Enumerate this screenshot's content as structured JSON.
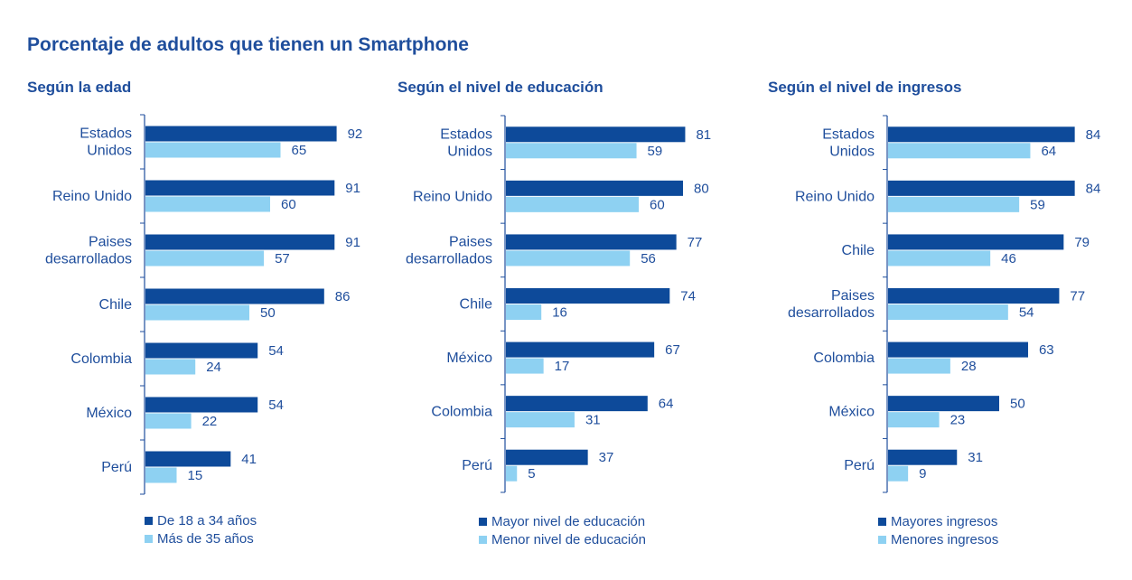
{
  "title": "Porcentaje de adultos que tienen un Smartphone",
  "colors": {
    "primary": "#0d4a9a",
    "secondary": "#8ed1f2",
    "text": "#1f4e9c"
  },
  "chart_data": [
    {
      "type": "bar",
      "orientation": "horizontal",
      "title": "Según la edad",
      "categories": [
        [
          "Estados",
          "Unidos"
        ],
        [
          "Reino Unido"
        ],
        [
          "Paises",
          "desarrollados"
        ],
        [
          "Chile"
        ],
        [
          "Colombia"
        ],
        [
          "México"
        ],
        [
          "Perú"
        ]
      ],
      "series": [
        {
          "name": "De 18 a 34 años",
          "values": [
            92,
            91,
            91,
            86,
            54,
            54,
            41
          ]
        },
        {
          "name": "Más de 35 años",
          "values": [
            65,
            60,
            57,
            50,
            24,
            22,
            15
          ]
        }
      ],
      "xlim": [
        0,
        100
      ],
      "legend": "bottom"
    },
    {
      "type": "bar",
      "orientation": "horizontal",
      "title": "Según el nivel de educación",
      "categories": [
        [
          "Estados",
          "Unidos"
        ],
        [
          "Reino Unido"
        ],
        [
          "Paises",
          "desarrollados"
        ],
        [
          "Chile"
        ],
        [
          "México"
        ],
        [
          "Colombia"
        ],
        [
          "Perú"
        ]
      ],
      "series": [
        {
          "name": "Mayor nivel de educación",
          "values": [
            81,
            80,
            77,
            74,
            67,
            64,
            37
          ]
        },
        {
          "name": "Menor nivel de educación",
          "values": [
            59,
            60,
            56,
            16,
            17,
            31,
            5
          ]
        }
      ],
      "xlim": [
        0,
        100
      ],
      "legend": "bottom"
    },
    {
      "type": "bar",
      "orientation": "horizontal",
      "title": "Según el nivel de ingresos",
      "categories": [
        [
          "Estados",
          "Unidos"
        ],
        [
          "Reino Unido"
        ],
        [
          "Chile"
        ],
        [
          "Paises",
          "desarrollados"
        ],
        [
          "Colombia"
        ],
        [
          "México"
        ],
        [
          "Perú"
        ]
      ],
      "series": [
        {
          "name": "Mayores ingresos",
          "values": [
            84,
            84,
            79,
            77,
            63,
            50,
            31
          ]
        },
        {
          "name": "Menores ingresos",
          "values": [
            64,
            59,
            46,
            54,
            28,
            23,
            9
          ]
        }
      ],
      "xlim": [
        0,
        100
      ],
      "legend": "bottom"
    }
  ]
}
